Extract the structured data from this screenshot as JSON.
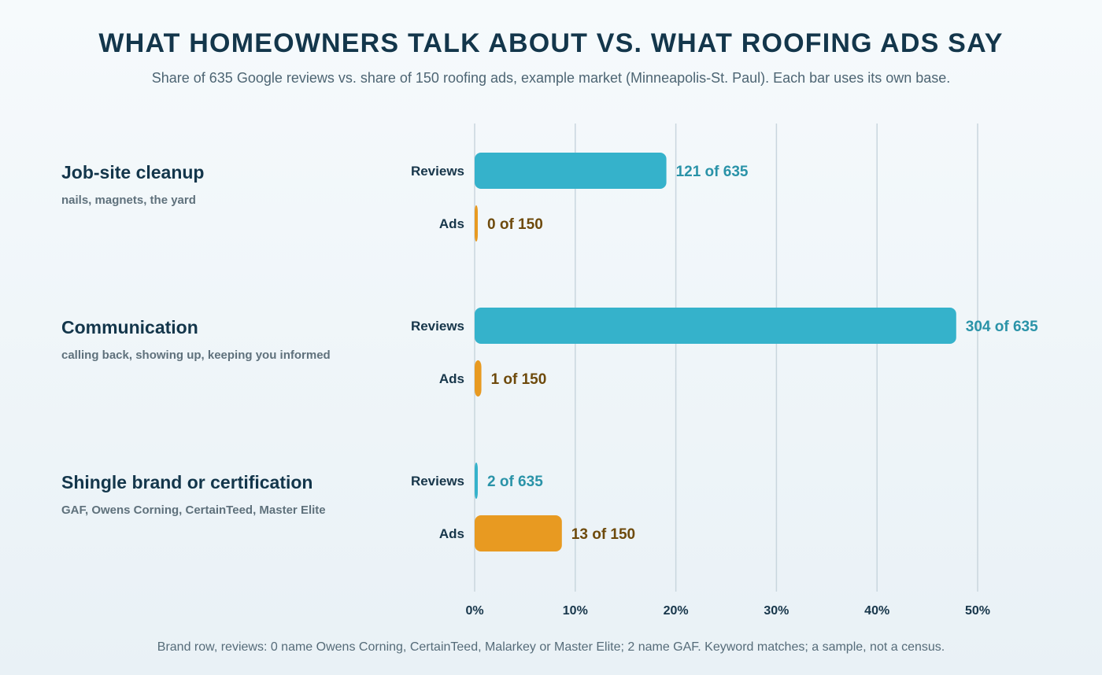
{
  "chart_data": {
    "type": "bar",
    "orientation": "horizontal",
    "title": "WHAT HOMEOWNERS TALK ABOUT VS. WHAT ROOFING ADS SAY",
    "subtitle": "Share of 635 Google reviews vs. share of 150 roofing ads, example market (Minneapolis-St. Paul). Each bar uses its own base.",
    "footnote": "Brand row, reviews: 0 name Owens Corning, CertainTeed, Malarkey or Master Elite; 2 name GAF. Keyword matches; a sample, not a census.",
    "xlim": [
      0,
      50
    ],
    "x_ticks": [
      0,
      10,
      20,
      30,
      40,
      50
    ],
    "x_tick_labels": [
      "0%",
      "10%",
      "20%",
      "30%",
      "40%",
      "50%"
    ],
    "grid": true,
    "colors": {
      "reviews": "#35b2cb",
      "ads": "#e89a21"
    },
    "categories": [
      {
        "name": "Job-site cleanup",
        "description": "nails, magnets, the yard",
        "bars": [
          {
            "series": "Reviews",
            "label": "Reviews",
            "count": 121,
            "base": 635,
            "value": 19.06,
            "display": "121 of 635"
          },
          {
            "series": "Ads",
            "label": "Ads",
            "count": 0,
            "base": 150,
            "value": 0,
            "display": "0 of 150"
          }
        ]
      },
      {
        "name": "Communication",
        "description": "calling back, showing up, keeping you informed",
        "bars": [
          {
            "series": "Reviews",
            "label": "Reviews",
            "count": 304,
            "base": 635,
            "value": 47.87,
            "display": "304 of 635"
          },
          {
            "series": "Ads",
            "label": "Ads",
            "count": 1,
            "base": 150,
            "value": 0.67,
            "display": "1 of 150"
          }
        ]
      },
      {
        "name": "Shingle brand or certification",
        "description": "GAF, Owens Corning, CertainTeed, Master Elite",
        "bars": [
          {
            "series": "Reviews",
            "label": "Reviews",
            "count": 2,
            "base": 635,
            "value": 0.31,
            "display": "2 of 635"
          },
          {
            "series": "Ads",
            "label": "Ads",
            "count": 13,
            "base": 150,
            "value": 8.67,
            "display": "13 of 150"
          }
        ]
      }
    ]
  }
}
